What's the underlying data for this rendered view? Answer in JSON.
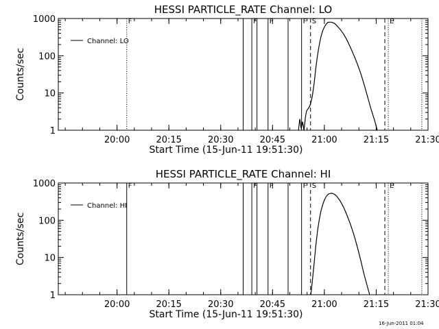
{
  "footer": {
    "timestamp": "16-Jun-2011 01:04"
  },
  "chart_data": [
    {
      "type": "line",
      "title": "HESSI PARTICLE_RATE Channel: LO",
      "xlabel": "Start Time (15-Jun-11 19:51:30)",
      "ylabel": "Counts/sec",
      "y_scale": "log",
      "ylim": [
        1,
        1000
      ],
      "xlim_minutes": [
        -8.5,
        98.5
      ],
      "x_ticks": [
        {
          "m": 8.5,
          "label": "20:00"
        },
        {
          "m": 23.5,
          "label": "20:15"
        },
        {
          "m": 38.5,
          "label": "20:30"
        },
        {
          "m": 53.5,
          "label": "20:45"
        },
        {
          "m": 68.5,
          "label": "21:00"
        },
        {
          "m": 83.5,
          "label": "21:15"
        },
        {
          "m": 98.5,
          "label": "21:30"
        }
      ],
      "y_ticks": [
        {
          "v": 1,
          "label": "1"
        },
        {
          "v": 10,
          "label": "10"
        },
        {
          "v": 100,
          "label": "100"
        },
        {
          "v": 1000,
          "label": "1000"
        }
      ],
      "legend": {
        "label": "Channel: LO",
        "position": "top-left"
      },
      "markers": [
        {
          "m": 11.3,
          "style": "dotted",
          "label": "F"
        },
        {
          "m": 45.0,
          "style": "solid",
          "label": ""
        },
        {
          "m": 47.5,
          "style": "solid",
          "label": "F"
        },
        {
          "m": 49.0,
          "style": "solid",
          "label": ""
        },
        {
          "m": 52.2,
          "style": "solid",
          "label": "F"
        },
        {
          "m": 58.0,
          "style": "solid",
          "label": ""
        },
        {
          "m": 61.9,
          "style": "solid",
          "label": "F"
        },
        {
          "m": 64.5,
          "style": "dashed",
          "label": "S"
        },
        {
          "m": 86.0,
          "style": "dashed",
          "label": ""
        },
        {
          "m": 87.0,
          "style": "dotted",
          "label": "E"
        },
        {
          "m": 96.7,
          "style": "dotted",
          "label": ""
        }
      ],
      "series": [
        {
          "points": [
            [
              61.0,
              1.0
            ],
            [
              61.4,
              2.0
            ],
            [
              61.8,
              1.1
            ],
            [
              62.2,
              1.7
            ],
            [
              62.6,
              1.0
            ],
            [
              63.0,
              2.2
            ],
            [
              63.3,
              3.2
            ],
            [
              63.6,
              3.6
            ],
            [
              63.9,
              3.9
            ],
            [
              64.2,
              4.3
            ],
            [
              64.6,
              5.5
            ],
            [
              65.0,
              8.0
            ],
            [
              65.5,
              17
            ],
            [
              66.0,
              45
            ],
            [
              66.5,
              100
            ],
            [
              67.0,
              190
            ],
            [
              67.5,
              320
            ],
            [
              68.0,
              470
            ],
            [
              68.5,
              590
            ],
            [
              69.0,
              700
            ],
            [
              69.5,
              790
            ],
            [
              70.0,
              800
            ],
            [
              70.5,
              800
            ],
            [
              71.0,
              770
            ],
            [
              71.5,
              730
            ],
            [
              72.0,
              660
            ],
            [
              73.0,
              520
            ],
            [
              74.0,
              390
            ],
            [
              75.0,
              270
            ],
            [
              76.0,
              170
            ],
            [
              77.0,
              105
            ],
            [
              78.0,
              62
            ],
            [
              79.0,
              34
            ],
            [
              80.0,
              17
            ],
            [
              81.0,
              8
            ],
            [
              82.0,
              3.7
            ],
            [
              83.0,
              1.9
            ],
            [
              83.8,
              1.0
            ]
          ]
        }
      ]
    },
    {
      "type": "line",
      "title": "HESSI PARTICLE_RATE Channel: HI",
      "xlabel": "Start Time (15-Jun-11 19:51:30)",
      "ylabel": "Counts/sec",
      "y_scale": "log",
      "ylim": [
        1,
        1000
      ],
      "xlim_minutes": [
        -8.5,
        98.5
      ],
      "x_ticks": [
        {
          "m": 8.5,
          "label": "20:00"
        },
        {
          "m": 23.5,
          "label": "20:15"
        },
        {
          "m": 38.5,
          "label": "20:30"
        },
        {
          "m": 53.5,
          "label": "20:45"
        },
        {
          "m": 68.5,
          "label": "21:00"
        },
        {
          "m": 83.5,
          "label": "21:15"
        },
        {
          "m": 98.5,
          "label": "21:30"
        }
      ],
      "y_ticks": [
        {
          "v": 1,
          "label": "1"
        },
        {
          "v": 10,
          "label": "10"
        },
        {
          "v": 100,
          "label": "100"
        },
        {
          "v": 1000,
          "label": "1000"
        }
      ],
      "legend": {
        "label": "Channel: HI",
        "position": "top-left"
      },
      "markers": [
        {
          "m": 11.3,
          "style": "solid",
          "label": "F"
        },
        {
          "m": 45.0,
          "style": "solid",
          "label": ""
        },
        {
          "m": 47.5,
          "style": "solid",
          "label": "F"
        },
        {
          "m": 49.0,
          "style": "solid",
          "label": ""
        },
        {
          "m": 52.2,
          "style": "solid",
          "label": "F"
        },
        {
          "m": 58.0,
          "style": "solid",
          "label": ""
        },
        {
          "m": 61.9,
          "style": "solid",
          "label": "F"
        },
        {
          "m": 64.5,
          "style": "dashed",
          "label": "S"
        },
        {
          "m": 86.0,
          "style": "dashed",
          "label": ""
        },
        {
          "m": 87.0,
          "style": "dotted",
          "label": "E"
        },
        {
          "m": 96.7,
          "style": "dotted",
          "label": ""
        }
      ],
      "series": [
        {
          "points": [
            [
              64.6,
              1.0
            ],
            [
              65.0,
              2.2
            ],
            [
              65.5,
              6.5
            ],
            [
              66.0,
              20
            ],
            [
              66.5,
              50
            ],
            [
              67.0,
              100
            ],
            [
              67.5,
              175
            ],
            [
              68.0,
              260
            ],
            [
              68.5,
              350
            ],
            [
              69.0,
              430
            ],
            [
              69.5,
              490
            ],
            [
              70.0,
              520
            ],
            [
              70.5,
              530
            ],
            [
              71.0,
              520
            ],
            [
              71.5,
              490
            ],
            [
              72.0,
              450
            ],
            [
              73.0,
              340
            ],
            [
              74.0,
              230
            ],
            [
              75.0,
              140
            ],
            [
              76.0,
              80
            ],
            [
              77.0,
              42
            ],
            [
              78.0,
              20
            ],
            [
              79.0,
              8.5
            ],
            [
              80.0,
              3.5
            ],
            [
              81.0,
              1.6
            ],
            [
              81.6,
              1.0
            ]
          ]
        }
      ]
    }
  ]
}
